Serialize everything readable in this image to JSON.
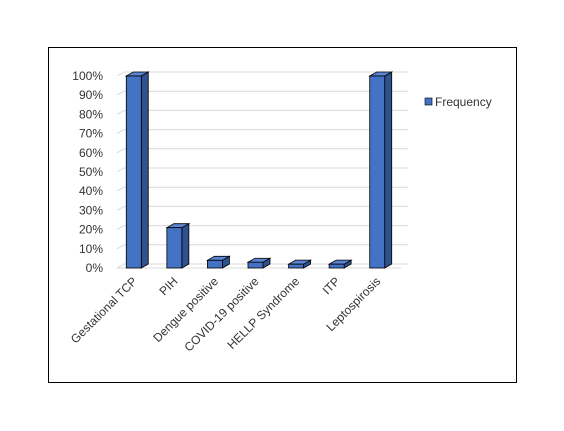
{
  "chart_data": {
    "type": "bar",
    "style": "3d-column",
    "categories": [
      "Gestational TCP",
      "PIH",
      "Dengue positive",
      "COVID-19 positive",
      "HELLP Syndrome",
      "ITP",
      "Leptospirosis"
    ],
    "series": [
      {
        "name": "Frequency",
        "values": [
          100,
          21,
          4,
          3,
          2,
          2,
          100
        ]
      }
    ],
    "y_ticks": [
      "0%",
      "10%",
      "20%",
      "30%",
      "40%",
      "50%",
      "60%",
      "70%",
      "80%",
      "90%",
      "100%"
    ],
    "ylim": [
      0,
      100
    ],
    "title": "",
    "xlabel": "",
    "ylabel": "",
    "grid": true,
    "legend_position": "right",
    "colors": {
      "bar_front": "#4472C4",
      "bar_top": "#5B84D2",
      "bar_side": "#2F528F",
      "bar_outline": "#000000",
      "grid": "#D9D9D9"
    }
  }
}
